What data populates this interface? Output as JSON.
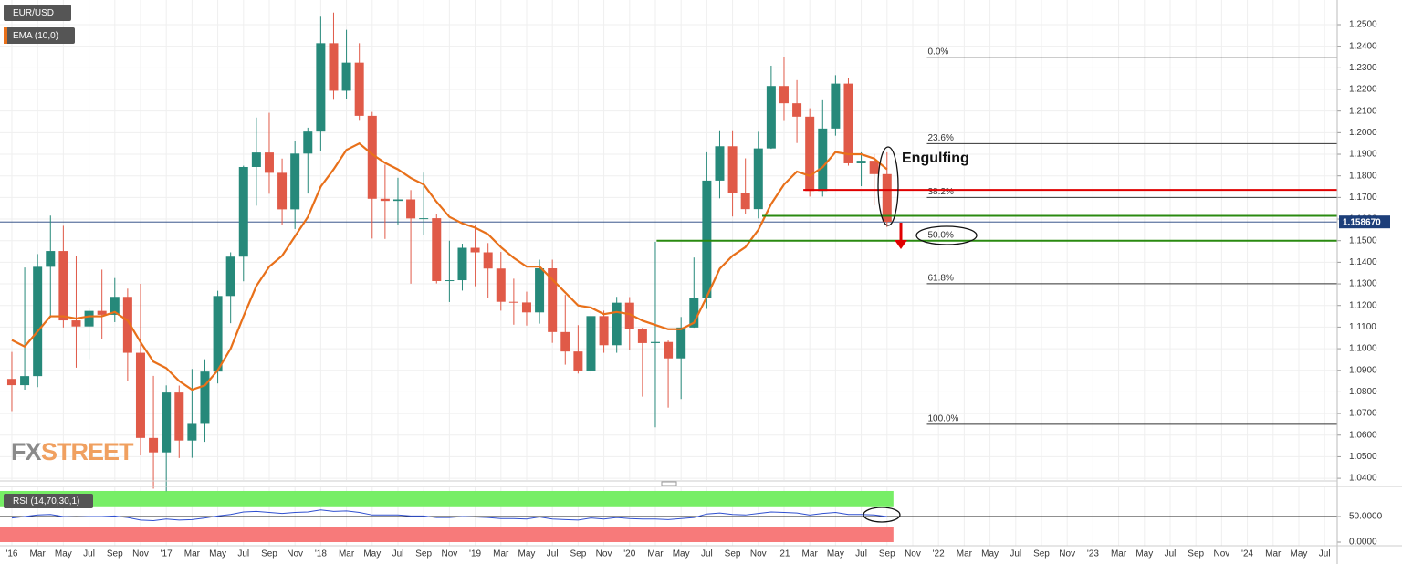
{
  "chart_data": {
    "type": "candlestick",
    "title": "EUR/USD",
    "up_color": "#26897a",
    "down_color": "#e05a48",
    "xlim": [
      -0.92,
      102.98
    ],
    "xticks": [
      {
        "value": 0,
        "label": "'16"
      },
      {
        "value": 2,
        "label": "Mar"
      },
      {
        "value": 4,
        "label": "May"
      },
      {
        "value": 6,
        "label": "Jul"
      },
      {
        "value": 8,
        "label": "Sep"
      },
      {
        "value": 10,
        "label": "Nov"
      },
      {
        "value": 12,
        "label": "'17"
      },
      {
        "value": 14,
        "label": "Mar"
      },
      {
        "value": 16,
        "label": "May"
      },
      {
        "value": 18,
        "label": "Jul"
      },
      {
        "value": 20,
        "label": "Sep"
      },
      {
        "value": 22,
        "label": "Nov"
      },
      {
        "value": 24,
        "label": "'18"
      },
      {
        "value": 26,
        "label": "Mar"
      },
      {
        "value": 28,
        "label": "May"
      },
      {
        "value": 30,
        "label": "Jul"
      },
      {
        "value": 32,
        "label": "Sep"
      },
      {
        "value": 34,
        "label": "Nov"
      },
      {
        "value": 36,
        "label": "'19"
      },
      {
        "value": 38,
        "label": "Mar"
      },
      {
        "value": 40,
        "label": "May"
      },
      {
        "value": 42,
        "label": "Jul"
      },
      {
        "value": 44,
        "label": "Sep"
      },
      {
        "value": 46,
        "label": "Nov"
      },
      {
        "value": 48,
        "label": "'20"
      },
      {
        "value": 50,
        "label": "Mar"
      },
      {
        "value": 52,
        "label": "May"
      },
      {
        "value": 54,
        "label": "Jul"
      },
      {
        "value": 56,
        "label": "Sep"
      },
      {
        "value": 58,
        "label": "Nov"
      },
      {
        "value": 60,
        "label": "'21"
      },
      {
        "value": 62,
        "label": "Mar"
      },
      {
        "value": 64,
        "label": "May"
      },
      {
        "value": 66,
        "label": "Jul"
      },
      {
        "value": 68,
        "label": "Sep"
      },
      {
        "value": 70,
        "label": "Nov"
      },
      {
        "value": 72,
        "label": "'22"
      },
      {
        "value": 74,
        "label": "Mar"
      },
      {
        "value": 76,
        "label": "May"
      },
      {
        "value": 78,
        "label": "Jul"
      },
      {
        "value": 80,
        "label": "Sep"
      },
      {
        "value": 82,
        "label": "Nov"
      },
      {
        "value": 84,
        "label": "'23"
      },
      {
        "value": 86,
        "label": "Mar"
      },
      {
        "value": 88,
        "label": "May"
      },
      {
        "value": 90,
        "label": "Jul"
      },
      {
        "value": 92,
        "label": "Sep"
      },
      {
        "value": 94,
        "label": "Nov"
      },
      {
        "value": 96,
        "label": "'24"
      },
      {
        "value": 98,
        "label": "Mar"
      },
      {
        "value": 100,
        "label": "May"
      },
      {
        "value": 102,
        "label": "Jul"
      }
    ],
    "ylim": [
      1.0392,
      1.2614
    ],
    "yticks": [
      {
        "value": 1.04,
        "label": "1.0400"
      },
      {
        "value": 1.05,
        "label": "1.0500"
      },
      {
        "value": 1.06,
        "label": "1.0600"
      },
      {
        "value": 1.07,
        "label": "1.0700"
      },
      {
        "value": 1.08,
        "label": "1.0800"
      },
      {
        "value": 1.09,
        "label": "1.0900"
      },
      {
        "value": 1.1,
        "label": "1.1000"
      },
      {
        "value": 1.11,
        "label": "1.1100"
      },
      {
        "value": 1.12,
        "label": "1.1200"
      },
      {
        "value": 1.13,
        "label": "1.1300"
      },
      {
        "value": 1.14,
        "label": "1.1400"
      },
      {
        "value": 1.15,
        "label": "1.1500"
      },
      {
        "value": 1.16,
        "label": "1.1600"
      },
      {
        "value": 1.17,
        "label": "1.1700"
      },
      {
        "value": 1.18,
        "label": "1.1800"
      },
      {
        "value": 1.19,
        "label": "1.1900"
      },
      {
        "value": 1.2,
        "label": "1.2000"
      },
      {
        "value": 1.21,
        "label": "1.2100"
      },
      {
        "value": 1.22,
        "label": "1.2200"
      },
      {
        "value": 1.23,
        "label": "1.2300"
      },
      {
        "value": 1.24,
        "label": "1.2400"
      },
      {
        "value": 1.25,
        "label": "1.2500"
      }
    ],
    "grid": true,
    "open": [
      1.086,
      1.0831,
      1.0873,
      1.1379,
      1.1452,
      1.1131,
      1.1103,
      1.1175,
      1.1157,
      1.124,
      1.0981,
      1.0587,
      1.052,
      1.0797,
      1.0575,
      1.0652,
      1.0894,
      1.1244,
      1.1426,
      1.1841,
      1.1908,
      1.1814,
      1.1645,
      1.1903,
      1.2005,
      1.2414,
      1.2194,
      1.2324,
      1.2078,
      1.1694,
      1.1684,
      1.1691,
      1.1603,
      1.1604,
      1.1313,
      1.1317,
      1.1467,
      1.1446,
      1.1371,
      1.1217,
      1.1214,
      1.1168,
      1.1372,
      1.1077,
      1.0987,
      1.0899,
      1.1151,
      1.1016,
      1.1213,
      1.1091,
      1.1026,
      1.1031,
      1.0955,
      1.1098,
      1.1234,
      1.1778,
      1.1937,
      1.1722,
      1.1646,
      1.1927,
      1.2216,
      1.2136,
      1.2074,
      1.173,
      1.2019,
      1.2227,
      1.1858,
      1.187,
      1.1808
    ],
    "high": [
      1.0985,
      1.1376,
      1.1438,
      1.1616,
      1.1569,
      1.1428,
      1.1186,
      1.1366,
      1.1327,
      1.1278,
      1.13,
      1.0874,
      1.083,
      1.0829,
      1.0906,
      1.0951,
      1.1268,
      1.1446,
      1.1847,
      1.207,
      1.2092,
      1.188,
      1.1961,
      1.2023,
      1.2537,
      1.2556,
      1.2476,
      1.2414,
      1.2096,
      1.1852,
      1.1791,
      1.1734,
      1.1815,
      1.1625,
      1.15,
      1.1486,
      1.157,
      1.1489,
      1.1448,
      1.1324,
      1.1264,
      1.1412,
      1.1412,
      1.1249,
      1.1109,
      1.1179,
      1.1176,
      1.124,
      1.1239,
      1.1097,
      1.1495,
      1.1038,
      1.1147,
      1.1422,
      1.1909,
      1.2011,
      1.2011,
      1.1881,
      1.2004,
      1.231,
      1.2349,
      1.2243,
      1.2113,
      1.215,
      1.2266,
      1.2254,
      1.1909,
      1.1901,
      1.1909
    ],
    "low": [
      1.0711,
      1.081,
      1.0822,
      1.1144,
      1.1098,
      1.0912,
      1.0952,
      1.1046,
      1.1123,
      1.0851,
      1.0506,
      1.0352,
      1.034,
      1.0494,
      1.0495,
      1.0569,
      1.0839,
      1.1118,
      1.1312,
      1.1662,
      1.1717,
      1.1574,
      1.1554,
      1.1718,
      1.1915,
      1.2152,
      1.2155,
      1.2055,
      1.151,
      1.1508,
      1.1575,
      1.1301,
      1.1525,
      1.1302,
      1.1216,
      1.1269,
      1.1289,
      1.1234,
      1.1176,
      1.1111,
      1.1107,
      1.1116,
      1.1027,
      1.0926,
      1.0885,
      1.0879,
      1.0981,
      1.0981,
      1.0992,
      1.0778,
      1.0636,
      1.0727,
      1.0767,
      1.1097,
      1.1184,
      1.1696,
      1.1612,
      1.1622,
      1.1603,
      1.1925,
      1.2054,
      1.1952,
      1.1704,
      1.1704,
      1.1986,
      1.1847,
      1.1752,
      1.1664,
      1.1563
    ],
    "close": [
      1.0831,
      1.0873,
      1.1379,
      1.1452,
      1.1131,
      1.1103,
      1.1175,
      1.1157,
      1.124,
      1.0981,
      1.0587,
      1.052,
      1.0797,
      1.0575,
      1.0652,
      1.0894,
      1.1244,
      1.1426,
      1.1841,
      1.1908,
      1.1814,
      1.1645,
      1.1903,
      1.2005,
      1.2414,
      1.2194,
      1.2324,
      1.2078,
      1.1694,
      1.1684,
      1.1691,
      1.1603,
      1.1604,
      1.1313,
      1.1317,
      1.1467,
      1.1446,
      1.1371,
      1.1217,
      1.1214,
      1.1168,
      1.1372,
      1.1077,
      1.0987,
      1.0899,
      1.1151,
      1.1016,
      1.1213,
      1.1091,
      1.1026,
      1.1031,
      1.0955,
      1.1098,
      1.1234,
      1.1778,
      1.1937,
      1.1722,
      1.1646,
      1.1927,
      1.2216,
      1.2136,
      1.2074,
      1.173,
      1.2019,
      1.2227,
      1.1858,
      1.187,
      1.1808,
      1.1587
    ],
    "ema": {
      "name": "EMA (10,0)",
      "color": "#e8701a",
      "values": [
        1.104,
        1.101,
        1.108,
        1.115,
        1.115,
        1.114,
        1.115,
        1.115,
        1.117,
        1.113,
        1.103,
        1.094,
        1.091,
        1.085,
        1.081,
        1.083,
        1.09,
        1.1,
        1.115,
        1.129,
        1.138,
        1.143,
        1.152,
        1.161,
        1.175,
        1.183,
        1.192,
        1.195,
        1.19,
        1.186,
        1.183,
        1.179,
        1.176,
        1.168,
        1.161,
        1.158,
        1.156,
        1.153,
        1.147,
        1.142,
        1.138,
        1.138,
        1.132,
        1.126,
        1.12,
        1.119,
        1.116,
        1.117,
        1.116,
        1.113,
        1.111,
        1.109,
        1.109,
        1.112,
        1.124,
        1.137,
        1.143,
        1.147,
        1.155,
        1.167,
        1.176,
        1.182,
        1.18,
        1.184,
        1.191,
        1.19,
        1.19,
        1.188,
        1.183
      ]
    },
    "current_price": {
      "value": 1.15867,
      "label": "1.158670",
      "color": "#1d3f7a"
    },
    "levels": [
      {
        "value": 1.1735,
        "from": 61.5,
        "color": "#e00000"
      },
      {
        "value": 1.1615,
        "from": 58.3,
        "color": "#2a8a10"
      },
      {
        "value": 1.15,
        "from": 50.1,
        "color": "#2a8a10"
      }
    ],
    "fib_from": 71.1,
    "fib_levels": [
      {
        "label": "0.0%",
        "value": 1.2349
      },
      {
        "label": "23.6%",
        "value": 1.1949
      },
      {
        "label": "38.2%",
        "value": 1.17
      },
      {
        "label": "50.0%",
        "value": 1.15
      },
      {
        "label": "61.8%",
        "value": 1.1301
      },
      {
        "label": "100.0%",
        "value": 1.065
      }
    ],
    "annotation": "Engulfing",
    "watermark": [
      "FX",
      "STREET"
    ],
    "rsi": {
      "name": "RSI (14,70,30,1)",
      "color": "#3050d0",
      "ylim": [
        -10.7,
        107.1
      ],
      "yticks": [
        {
          "value": 0,
          "label": "0.0000"
        },
        {
          "value": 50,
          "label": "50.0000"
        }
      ],
      "overbought": [
        70,
        100
      ],
      "oversold": [
        0,
        30
      ],
      "values": [
        47,
        50,
        53,
        54,
        50,
        49,
        50,
        50,
        51,
        48,
        43,
        42,
        45,
        43,
        44,
        47,
        51,
        54,
        59,
        60,
        58,
        56,
        58,
        59,
        63,
        60,
        61,
        58,
        53,
        53,
        53,
        51,
        51,
        48,
        48,
        50,
        49,
        48,
        46,
        46,
        45,
        49,
        45,
        44,
        43,
        47,
        45,
        48,
        46,
        45,
        45,
        44,
        46,
        48,
        55,
        57,
        54,
        53,
        56,
        59,
        58,
        57,
        53,
        56,
        58,
        54,
        54,
        53,
        50
      ]
    }
  }
}
